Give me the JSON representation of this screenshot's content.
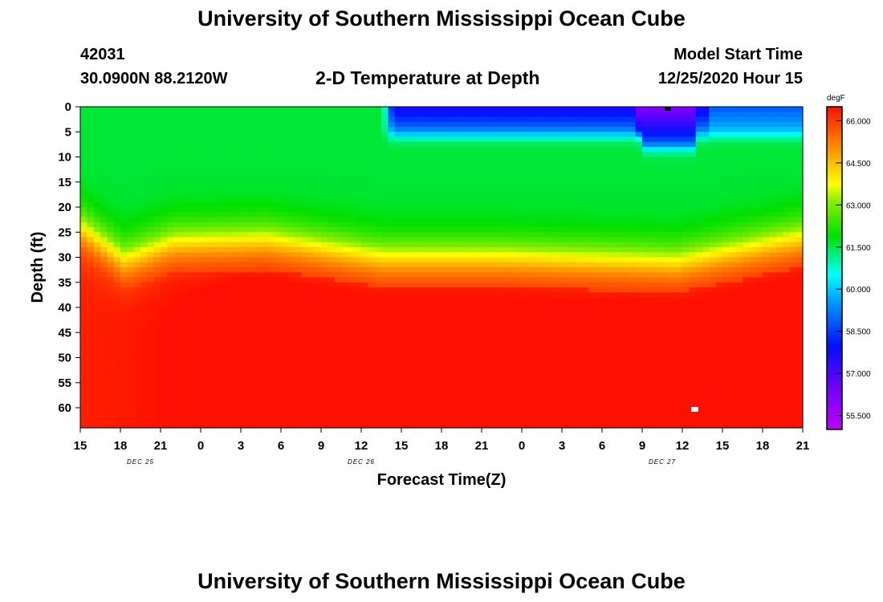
{
  "header": {
    "title": "University of Southern Mississippi Ocean Cube",
    "station_id": "42031",
    "location": "30.0900N 88.2120W",
    "plot_title": "2-D Temperature at Depth",
    "start_label": "Model Start Time",
    "start_value": "12/25/2020 Hour 15"
  },
  "footer": {
    "title": "University of Southern Mississippi Ocean Cube"
  },
  "chart_data": {
    "type": "heatmap",
    "title": "2-D Temperature at Depth",
    "xlabel": "Forecast Time(Z)",
    "ylabel": "Depth (ft)",
    "x_range_hours": [
      0,
      54
    ],
    "y_range_ft": [
      0,
      64
    ],
    "x_tick_labels": [
      "15",
      "18",
      "21",
      "0",
      "3",
      "6",
      "9",
      "12",
      "15",
      "18",
      "21",
      "0",
      "3",
      "6",
      "9",
      "12",
      "15",
      "18",
      "21"
    ],
    "y_tick_labels": [
      "0",
      "5",
      "10",
      "15",
      "20",
      "25",
      "30",
      "35",
      "40",
      "45",
      "50",
      "55",
      "60"
    ],
    "day_labels": [
      {
        "text": "DEC 25",
        "hour": 4.5
      },
      {
        "text": "DEC 26",
        "hour": 21
      },
      {
        "text": "DEC 27",
        "hour": 43.5
      }
    ],
    "colorbar": {
      "unit": "degF",
      "min": 55.0,
      "max": 66.5,
      "tick_labels": [
        "66.000",
        "64.500",
        "63.000",
        "61.500",
        "60.000",
        "58.500",
        "57.000",
        "55.500"
      ],
      "tick_values": [
        66.0,
        64.5,
        63.0,
        61.5,
        60.0,
        58.5,
        57.0,
        55.5
      ]
    },
    "thermocline_depth_ft": [
      {
        "hour": 0,
        "depth": 24
      },
      {
        "hour": 3.3,
        "depth": 30.5
      },
      {
        "hour": 7,
        "depth": 27
      },
      {
        "hour": 14,
        "depth": 26.5
      },
      {
        "hour": 22.6,
        "depth": 30
      },
      {
        "hour": 31.6,
        "depth": 30
      },
      {
        "hour": 44.6,
        "depth": 31
      },
      {
        "hour": 54,
        "depth": 26
      }
    ],
    "cold_surface_layer": {
      "start_hour": 22.6,
      "end_hour": 54,
      "base_depth_ft": 6,
      "min_temp_degF": 55.5
    },
    "series_notes": {
      "upper_layer_degF": 61.6,
      "deep_layer_degF": 66.3
    }
  }
}
